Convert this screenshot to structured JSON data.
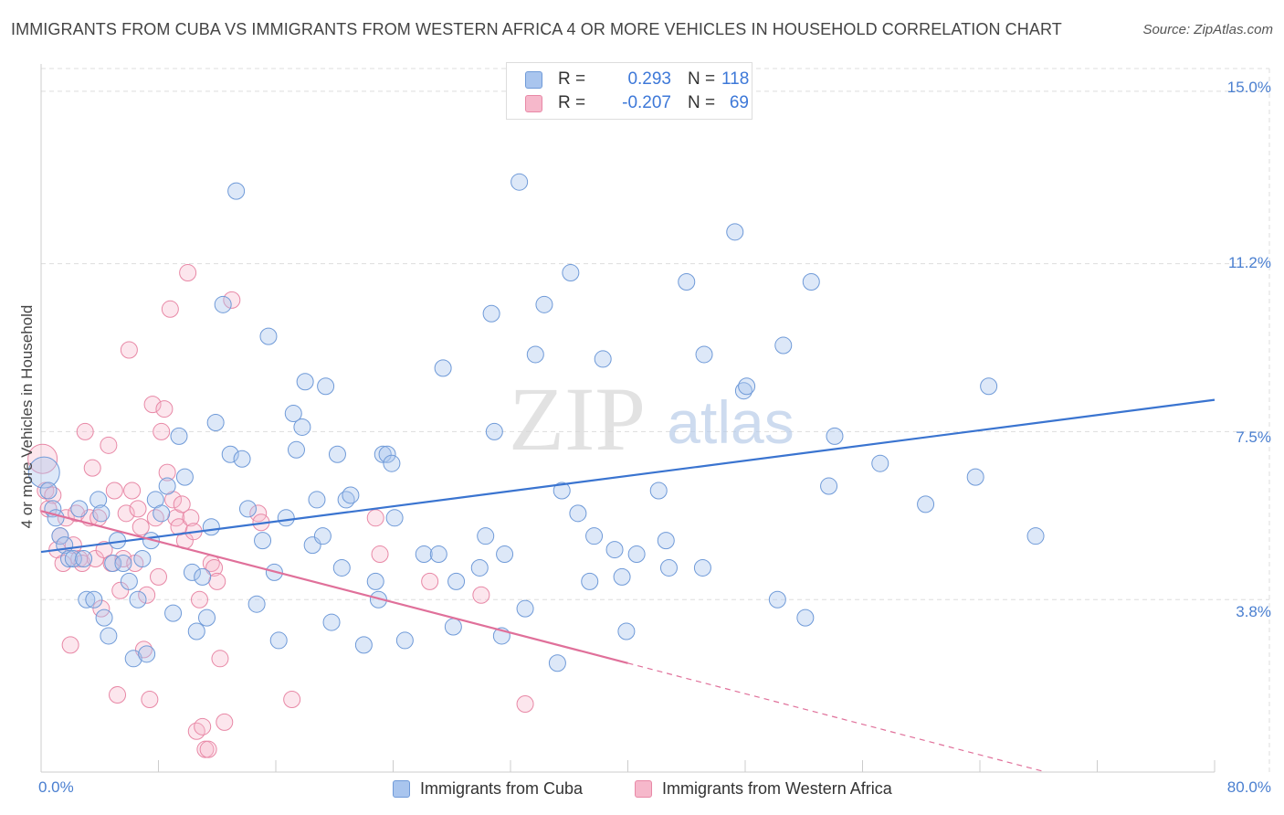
{
  "title": "IMMIGRANTS FROM CUBA VS IMMIGRANTS FROM WESTERN AFRICA 4 OR MORE VEHICLES IN HOUSEHOLD CORRELATION CHART",
  "source": "Source: ZipAtlas.com",
  "colors": {
    "blue_fill": "#a9c5ee",
    "blue_edge": "#6f9ad8",
    "blue_line": "#3a74d0",
    "pink_fill": "#f6b8cb",
    "pink_edge": "#e888a6",
    "pink_line": "#e0709a",
    "grid": "#dddddd",
    "tick_text": "#4a7fd0"
  },
  "stats": {
    "cuba": {
      "r_label": "R =",
      "r_value": "0.293",
      "n_label": "N =",
      "n_value": "118"
    },
    "wafrica": {
      "r_label": "R =",
      "r_value": "-0.207",
      "n_label": "N =",
      "n_value": "69"
    }
  },
  "legend": {
    "cuba": "Immigrants from Cuba",
    "wafrica": "Immigrants from Western Africa"
  },
  "chart_data": {
    "type": "scatter",
    "title": "IMMIGRANTS FROM CUBA VS IMMIGRANTS FROM WESTERN AFRICA 4 OR MORE VEHICLES IN HOUSEHOLD CORRELATION CHART",
    "xlabel": "",
    "ylabel": "4 or more Vehicles in Household",
    "xlim": [
      0,
      80
    ],
    "ylim": [
      0,
      15.5
    ],
    "x_tick_labels": [
      "0.0%",
      "80.0%"
    ],
    "y_ticks": [
      3.8,
      7.5,
      11.2,
      15.0
    ],
    "y_tick_labels": [
      "3.8%",
      "7.5%",
      "11.2%",
      "15.0%"
    ],
    "grid": true,
    "watermark": {
      "zip": "ZIP",
      "atlas": "atlas"
    },
    "series": [
      {
        "name": "Immigrants from Cuba",
        "color": "#a9c5ee",
        "trend": {
          "x0": 0,
          "y0": 4.85,
          "x1": 80,
          "y1": 8.2
        },
        "points": [
          [
            0.2,
            6.6
          ],
          [
            0.5,
            6.2
          ],
          [
            0.8,
            5.8
          ],
          [
            1.0,
            5.6
          ],
          [
            1.3,
            5.2
          ],
          [
            1.6,
            5.0
          ],
          [
            1.9,
            4.7
          ],
          [
            2.2,
            4.7
          ],
          [
            2.6,
            5.8
          ],
          [
            2.9,
            4.7
          ],
          [
            3.1,
            3.8
          ],
          [
            3.6,
            3.8
          ],
          [
            3.9,
            6.0
          ],
          [
            4.1,
            5.7
          ],
          [
            4.3,
            3.4
          ],
          [
            4.6,
            3.0
          ],
          [
            4.9,
            4.6
          ],
          [
            5.2,
            5.1
          ],
          [
            5.6,
            4.6
          ],
          [
            6.0,
            4.2
          ],
          [
            6.3,
            2.5
          ],
          [
            6.6,
            3.8
          ],
          [
            6.9,
            4.7
          ],
          [
            7.2,
            2.6
          ],
          [
            7.5,
            5.1
          ],
          [
            7.8,
            6.0
          ],
          [
            8.2,
            5.7
          ],
          [
            8.6,
            6.3
          ],
          [
            9.0,
            3.5
          ],
          [
            9.4,
            7.4
          ],
          [
            9.8,
            6.5
          ],
          [
            10.3,
            4.4
          ],
          [
            10.6,
            3.1
          ],
          [
            11.0,
            4.3
          ],
          [
            11.3,
            3.4
          ],
          [
            11.6,
            5.4
          ],
          [
            11.9,
            7.7
          ],
          [
            12.4,
            10.3
          ],
          [
            12.9,
            7.0
          ],
          [
            13.3,
            12.8
          ],
          [
            13.7,
            6.9
          ],
          [
            14.1,
            5.8
          ],
          [
            14.7,
            3.7
          ],
          [
            15.1,
            5.1
          ],
          [
            15.5,
            9.6
          ],
          [
            15.9,
            4.4
          ],
          [
            16.2,
            2.9
          ],
          [
            16.7,
            5.6
          ],
          [
            17.2,
            7.9
          ],
          [
            17.4,
            7.1
          ],
          [
            17.8,
            7.6
          ],
          [
            18.0,
            8.6
          ],
          [
            18.5,
            5.0
          ],
          [
            18.8,
            6.0
          ],
          [
            19.2,
            5.2
          ],
          [
            19.4,
            8.5
          ],
          [
            19.8,
            3.3
          ],
          [
            20.2,
            7.0
          ],
          [
            20.5,
            4.5
          ],
          [
            20.8,
            6.0
          ],
          [
            21.1,
            6.1
          ],
          [
            22.0,
            2.8
          ],
          [
            22.8,
            4.2
          ],
          [
            23.0,
            3.8
          ],
          [
            23.3,
            7.0
          ],
          [
            23.6,
            7.0
          ],
          [
            23.9,
            6.8
          ],
          [
            24.1,
            5.6
          ],
          [
            24.8,
            2.9
          ],
          [
            26.1,
            4.8
          ],
          [
            27.4,
            8.9
          ],
          [
            27.1,
            4.8
          ],
          [
            28.1,
            3.2
          ],
          [
            28.3,
            4.2
          ],
          [
            29.9,
            4.5
          ],
          [
            30.3,
            5.2
          ],
          [
            30.7,
            10.1
          ],
          [
            30.9,
            7.5
          ],
          [
            31.4,
            3.0
          ],
          [
            31.6,
            4.8
          ],
          [
            32.6,
            13.0
          ],
          [
            33.0,
            3.6
          ],
          [
            34.3,
            10.3
          ],
          [
            33.7,
            9.2
          ],
          [
            35.2,
            2.4
          ],
          [
            35.5,
            6.2
          ],
          [
            36.1,
            11.0
          ],
          [
            36.6,
            5.7
          ],
          [
            37.4,
            4.2
          ],
          [
            37.7,
            5.2
          ],
          [
            38.3,
            9.1
          ],
          [
            39.1,
            4.9
          ],
          [
            39.6,
            4.3
          ],
          [
            39.9,
            3.1
          ],
          [
            40.6,
            4.8
          ],
          [
            42.1,
            6.2
          ],
          [
            42.6,
            5.1
          ],
          [
            42.8,
            4.5
          ],
          [
            44.0,
            10.8
          ],
          [
            45.2,
            9.2
          ],
          [
            45.1,
            4.5
          ],
          [
            47.3,
            11.9
          ],
          [
            47.9,
            8.4
          ],
          [
            48.1,
            8.5
          ],
          [
            50.2,
            3.8
          ],
          [
            50.6,
            9.4
          ],
          [
            52.1,
            3.4
          ],
          [
            52.5,
            10.8
          ],
          [
            53.7,
            6.3
          ],
          [
            54.1,
            7.4
          ],
          [
            57.2,
            6.8
          ],
          [
            60.3,
            5.9
          ],
          [
            63.7,
            6.5
          ],
          [
            64.6,
            8.5
          ],
          [
            67.8,
            5.2
          ]
        ]
      },
      {
        "name": "Immigrants from Western Africa",
        "color": "#f6b8cb",
        "trend": {
          "x0": 0,
          "y0": 5.75,
          "x1": 40,
          "y1": 2.4
        },
        "trend_dashed": {
          "x0": 40,
          "y0": 2.4,
          "x1": 68.5,
          "y1": 0.0
        },
        "points": [
          [
            0.1,
            6.9
          ],
          [
            0.3,
            6.2
          ],
          [
            0.5,
            5.8
          ],
          [
            0.8,
            6.1
          ],
          [
            1.1,
            4.9
          ],
          [
            1.3,
            5.2
          ],
          [
            1.5,
            4.6
          ],
          [
            1.7,
            5.6
          ],
          [
            2.0,
            2.8
          ],
          [
            2.2,
            5.0
          ],
          [
            2.4,
            5.7
          ],
          [
            2.6,
            4.7
          ],
          [
            2.8,
            4.6
          ],
          [
            3.0,
            7.5
          ],
          [
            3.3,
            5.6
          ],
          [
            3.5,
            6.7
          ],
          [
            3.7,
            4.7
          ],
          [
            3.9,
            5.6
          ],
          [
            4.1,
            3.6
          ],
          [
            4.3,
            4.9
          ],
          [
            4.6,
            7.2
          ],
          [
            4.8,
            4.6
          ],
          [
            5.0,
            6.2
          ],
          [
            5.2,
            1.7
          ],
          [
            5.4,
            4.0
          ],
          [
            5.6,
            4.7
          ],
          [
            5.8,
            5.7
          ],
          [
            6.0,
            9.3
          ],
          [
            6.2,
            6.2
          ],
          [
            6.4,
            4.6
          ],
          [
            6.6,
            5.8
          ],
          [
            6.8,
            5.4
          ],
          [
            7.0,
            2.7
          ],
          [
            7.2,
            3.9
          ],
          [
            7.4,
            1.6
          ],
          [
            7.6,
            8.1
          ],
          [
            7.8,
            5.6
          ],
          [
            8.0,
            4.3
          ],
          [
            8.2,
            7.5
          ],
          [
            8.4,
            8.0
          ],
          [
            8.6,
            6.6
          ],
          [
            8.8,
            10.2
          ],
          [
            9.0,
            6.0
          ],
          [
            9.2,
            5.6
          ],
          [
            9.4,
            5.4
          ],
          [
            9.6,
            5.9
          ],
          [
            9.8,
            5.1
          ],
          [
            10.0,
            11.0
          ],
          [
            10.2,
            5.6
          ],
          [
            10.4,
            5.3
          ],
          [
            10.6,
            0.9
          ],
          [
            10.8,
            3.8
          ],
          [
            11.0,
            1.0
          ],
          [
            11.2,
            0.5
          ],
          [
            11.4,
            0.5
          ],
          [
            11.6,
            4.6
          ],
          [
            11.8,
            4.5
          ],
          [
            12.0,
            4.2
          ],
          [
            12.2,
            2.5
          ],
          [
            12.5,
            1.1
          ],
          [
            13.0,
            10.4
          ],
          [
            14.8,
            5.7
          ],
          [
            15.0,
            5.5
          ],
          [
            17.1,
            1.6
          ],
          [
            22.8,
            5.6
          ],
          [
            23.1,
            4.8
          ],
          [
            26.5,
            4.2
          ],
          [
            30.0,
            3.9
          ],
          [
            33.0,
            1.5
          ]
        ]
      }
    ]
  }
}
